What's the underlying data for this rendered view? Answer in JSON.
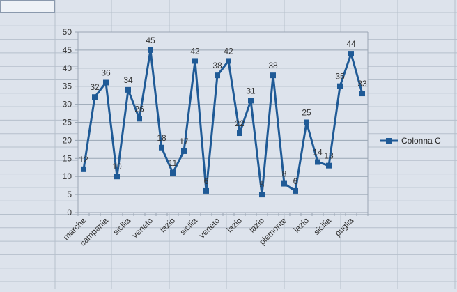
{
  "colors": {
    "series": "#1f5a96",
    "background": "#dde3ec",
    "gridline": "#9aa6b4",
    "cellline": "#b6c0cc"
  },
  "chart_data": {
    "type": "line",
    "title": "",
    "xlabel": "",
    "ylabel": "",
    "ylim": [
      0,
      50
    ],
    "yticks": [
      "0",
      "5",
      "10",
      "15",
      "20",
      "25",
      "30",
      "35",
      "40",
      "45",
      "50"
    ],
    "x": [
      "marche",
      "",
      "campania",
      "",
      "sicilia",
      "",
      "veneto",
      "",
      "lazio",
      "",
      "sicilia",
      "",
      "veneto",
      "",
      "lazio",
      "",
      "lazio",
      "",
      "piemonte",
      "",
      "lazio",
      "",
      "sicilia",
      "",
      "puglia",
      ""
    ],
    "series": [
      {
        "name": "Colonna C",
        "values": [
          12,
          32,
          36,
          10,
          34,
          26,
          45,
          18,
          11,
          17,
          42,
          6,
          38,
          42,
          22,
          31,
          5,
          38,
          8,
          6,
          25,
          14,
          13,
          35,
          44,
          33
        ]
      }
    ],
    "legend": "right",
    "grid": true
  }
}
